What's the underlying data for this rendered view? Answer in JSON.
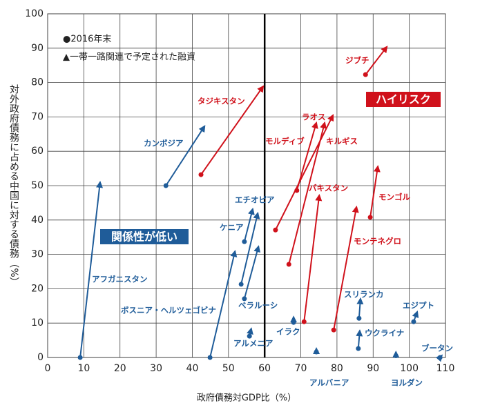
{
  "chart_data": {
    "type": "arrow-scatter",
    "x_label": "政府債務対GDP比（%）",
    "y_label": "対外政府債務に占める中国に対する債務（%）",
    "legend": [
      "●2016年末",
      "▲一帯一路関連で予定された融資"
    ],
    "annotations": [
      {
        "text": "ハイリスク",
        "color": "#d0111b"
      },
      {
        "text": "関係性が低い",
        "color": "#1f5c99"
      }
    ],
    "reference_x": 60,
    "xlim": [
      0,
      110
    ],
    "xticks": [
      0,
      10,
      20,
      30,
      40,
      50,
      60,
      70,
      80,
      90,
      100,
      110
    ],
    "ylim": [
      0,
      100
    ],
    "yticks": [
      0,
      10,
      20,
      30,
      40,
      50,
      60,
      70,
      80,
      90,
      100
    ],
    "grid": true,
    "series": [
      {
        "name": "アフガニスタン",
        "color": "#1f5c99",
        "x": [
          9,
          14.5
        ],
        "values": [
          0,
          51
        ]
      },
      {
        "name": "カンボジア",
        "color": "#1f5c99",
        "x": [
          32.7,
          43.4
        ],
        "values": [
          50,
          67.3
        ]
      },
      {
        "name": "タジキスタン",
        "color": "#d0111b",
        "x": [
          42.4,
          59.6
        ],
        "values": [
          53.2,
          78.9
        ]
      },
      {
        "name": "ボスニア・ヘルツェゴビナ",
        "color": "#1f5c99",
        "x": [
          44.9,
          51.8
        ],
        "values": [
          0,
          30.9
        ]
      },
      {
        "name": "ケニア",
        "color": "#1f5c99",
        "x": [
          54.4,
          56.7
        ],
        "values": [
          33.7,
          43.2
        ]
      },
      {
        "name": "エチオピア",
        "color": "#1f5c99",
        "x": [
          53.5,
          58.1
        ],
        "values": [
          21.3,
          42
        ]
      },
      {
        "name": "ベラルーシ",
        "color": "#1f5c99",
        "x": [
          54.4,
          58.3
        ],
        "values": [
          17.1,
          32.3
        ]
      },
      {
        "name": "アルメニア",
        "color": "#1f5c99",
        "x": [
          55.8,
          56.3
        ],
        "values": [
          6.2,
          8.4
        ]
      },
      {
        "name": "イラク",
        "color": "#1f5c99",
        "x": [
          68,
          68
        ],
        "values": [
          10.2,
          11.8
        ]
      },
      {
        "name": "アルバニア",
        "color": "#1f5c99",
        "x": [
          74.3,
          74.3
        ],
        "values": [
          1.6,
          2.6
        ]
      },
      {
        "name": "ラオス",
        "color": "#d0111b",
        "x": [
          68.9,
          74.3
        ],
        "values": [
          48.6,
          68.3
        ]
      },
      {
        "name": "モルディブ",
        "color": "#d0111b",
        "x": [
          66.7,
          76.6
        ],
        "values": [
          27.1,
          68.3
        ]
      },
      {
        "name": "キルギス",
        "color": "#d0111b",
        "x": [
          63,
          78.9
        ],
        "values": [
          37.1,
          70.5
        ]
      },
      {
        "name": "パキスタン",
        "color": "#d0111b",
        "x": [
          70.9,
          75.1
        ],
        "values": [
          10.4,
          47.2
        ]
      },
      {
        "name": "モンテネグロ",
        "color": "#d0111b",
        "x": [
          79.1,
          85.4
        ],
        "values": [
          8,
          43.8
        ]
      },
      {
        "name": "モンゴル",
        "color": "#d0111b",
        "x": [
          89.2,
          91.3
        ],
        "values": [
          40.8,
          55.6
        ]
      },
      {
        "name": "ジブチ",
        "color": "#d0111b",
        "x": [
          87.9,
          93.8
        ],
        "values": [
          82.3,
          90.4
        ]
      },
      {
        "name": "スリランカ",
        "color": "#1f5c99",
        "x": [
          86.1,
          86.5
        ],
        "values": [
          11.4,
          17.1
        ]
      },
      {
        "name": "ウクライナ",
        "color": "#1f5c99",
        "x": [
          85.9,
          86.3
        ],
        "values": [
          2.6,
          7.8
        ]
      },
      {
        "name": "エジプト",
        "color": "#1f5c99",
        "x": [
          101.2,
          102.2
        ],
        "values": [
          10.4,
          13.3
        ]
      },
      {
        "name": "ヨルダン",
        "color": "#1f5c99",
        "x": [
          96.3,
          96.3
        ],
        "values": [
          0.5,
          1.6
        ]
      },
      {
        "name": "ブータン",
        "color": "#1f5c99",
        "x": [
          108.5,
          109
        ],
        "values": [
          0,
          0.6
        ]
      }
    ]
  }
}
